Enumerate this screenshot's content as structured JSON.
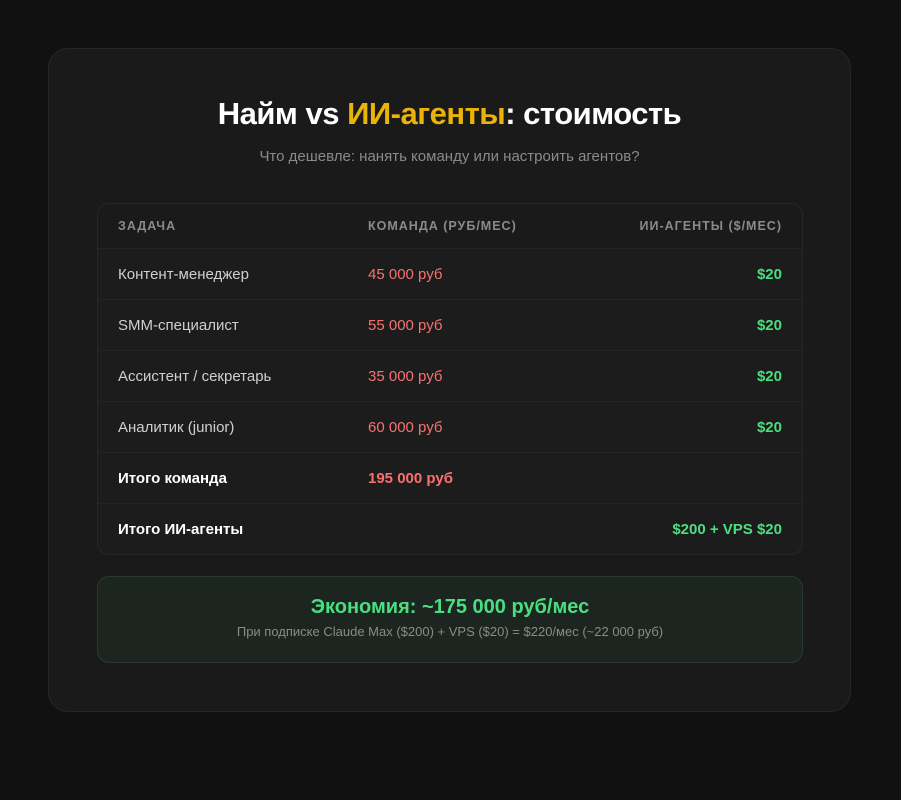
{
  "title": {
    "part1": "Найм vs ",
    "accent": "ИИ-агенты",
    "part2": ": стоимость"
  },
  "subtitle": "Что дешевле: нанять команду или настроить агентов?",
  "colors": {
    "accent": "#eab308",
    "red": "#f87171",
    "green": "#4ade80"
  },
  "table": {
    "headers": [
      "ЗАДАЧА",
      "КОМАНДА (РУБ/МЕС)",
      "ИИ-АГЕНТЫ ($/МЕС)"
    ],
    "rows": [
      [
        "Контент-менеджер",
        "45 000 руб",
        "$20"
      ],
      [
        "SMM-специалист",
        "55 000 руб",
        "$20"
      ],
      [
        "Ассистент / секретарь",
        "35 000 руб",
        "$20"
      ],
      [
        "Аналитик (junior)",
        "60 000 руб",
        "$20"
      ]
    ],
    "total_team": {
      "label": "Итого команда",
      "value": "195 000 руб"
    },
    "total_agents": {
      "label": "Итого ИИ-агенты",
      "value": "$200 + VPS $20"
    }
  },
  "savings": {
    "headline": "Экономия: ~175 000 руб/мес",
    "note": "При подписке Claude Max ($200) + VPS ($20) = $220/мес (~22 000 руб)"
  }
}
